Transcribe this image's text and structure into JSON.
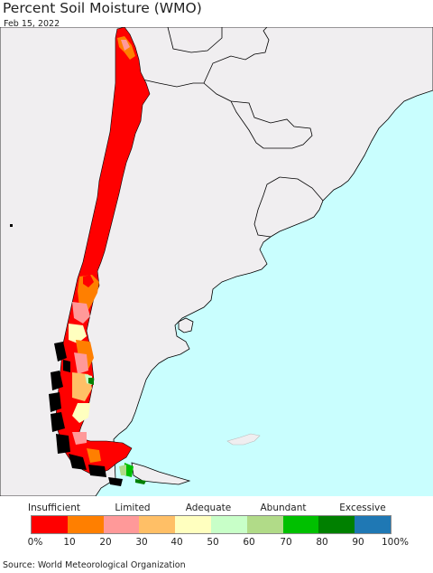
{
  "title": "Percent Soil Moisture (WMO)",
  "date": "Feb 15, 2022",
  "source": "Source: World Meteorological Organization",
  "colors": {
    "ocean": "#c9fefe",
    "land": "#f0eef0",
    "border": "#000000"
  },
  "legend": {
    "categories": [
      {
        "label": "Insufficient"
      },
      {
        "label": "Limited"
      },
      {
        "label": "Adequate"
      },
      {
        "label": "Abundant"
      },
      {
        "label": "Excessive"
      }
    ],
    "ticks": [
      "0%",
      "10",
      "20",
      "30",
      "40",
      "50",
      "60",
      "70",
      "80",
      "90",
      "100%"
    ],
    "bins": [
      {
        "range": "0-10",
        "color": "#ff0000"
      },
      {
        "range": "10-20",
        "color": "#ff7f00"
      },
      {
        "range": "20-30",
        "color": "#ff9999"
      },
      {
        "range": "30-40",
        "color": "#ffbf66"
      },
      {
        "range": "40-50",
        "color": "#ffffbf"
      },
      {
        "range": "50-60",
        "color": "#c8ffc8"
      },
      {
        "range": "60-70",
        "color": "#b1db88"
      },
      {
        "range": "70-80",
        "color": "#00c000"
      },
      {
        "range": "80-90",
        "color": "#008000"
      },
      {
        "range": "90-100",
        "color": "#1f78b4"
      }
    ]
  }
}
